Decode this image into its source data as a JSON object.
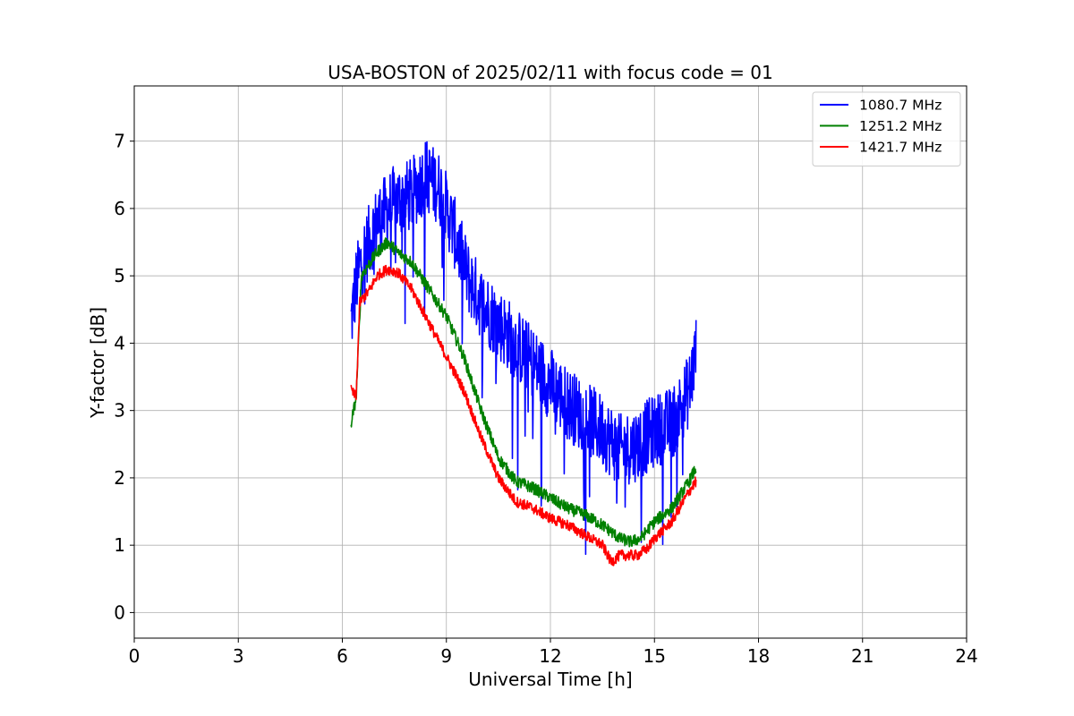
{
  "chart_data": {
    "type": "line",
    "title": "USA-BOSTON of 2025/02/11 with focus code = 01",
    "xlabel": "Universal Time [h]",
    "ylabel": "Y-factor [dB]",
    "xlim": [
      0,
      24
    ],
    "ylim": [
      -0.38,
      7.82
    ],
    "xticks": [
      0,
      3,
      6,
      9,
      12,
      15,
      18,
      21,
      24
    ],
    "yticks": [
      0,
      1,
      2,
      3,
      4,
      5,
      6,
      7
    ],
    "grid": true,
    "legend_position": "top-right",
    "series": [
      {
        "name": "1080.7 MHz",
        "color": "#0000ff",
        "noise": 0.55,
        "x": [
          6.25,
          6.4,
          6.6,
          7.0,
          7.5,
          8.0,
          8.4,
          8.8,
          9.2,
          9.6,
          10.0,
          10.5,
          11.0,
          11.5,
          12.0,
          12.5,
          13.0,
          13.5,
          14.0,
          14.5,
          15.0,
          15.5,
          16.0,
          16.2
        ],
        "y": [
          4.3,
          4.9,
          5.3,
          5.8,
          6.1,
          6.2,
          6.5,
          6.3,
          5.7,
          5.0,
          4.6,
          4.3,
          4.0,
          3.7,
          3.4,
          3.1,
          2.9,
          2.7,
          2.4,
          2.5,
          2.7,
          2.8,
          3.3,
          3.9
        ]
      },
      {
        "name": "1251.2 MHz",
        "color": "#008000",
        "noise": 0.09,
        "x": [
          6.25,
          6.4,
          6.55,
          6.8,
          7.0,
          7.3,
          7.6,
          8.0,
          8.5,
          9.0,
          9.5,
          10.0,
          10.5,
          11.0,
          11.5,
          12.0,
          12.5,
          13.0,
          13.5,
          14.0,
          14.3,
          14.6,
          15.0,
          15.5,
          16.0,
          16.2
        ],
        "y": [
          2.8,
          3.2,
          5.0,
          5.2,
          5.35,
          5.5,
          5.35,
          5.2,
          4.8,
          4.4,
          3.8,
          3.0,
          2.3,
          1.95,
          1.85,
          1.7,
          1.55,
          1.45,
          1.3,
          1.1,
          1.05,
          1.1,
          1.35,
          1.55,
          1.95,
          2.15
        ]
      },
      {
        "name": "1421.7 MHz",
        "color": "#ff0000",
        "noise": 0.08,
        "x": [
          6.25,
          6.4,
          6.5,
          6.8,
          7.0,
          7.3,
          7.6,
          8.0,
          8.5,
          9.0,
          9.5,
          10.0,
          10.5,
          11.0,
          11.5,
          12.0,
          12.5,
          13.0,
          13.5,
          13.75,
          14.0,
          14.5,
          14.8,
          15.0,
          15.5,
          16.0,
          16.2
        ],
        "y": [
          3.3,
          3.2,
          4.6,
          4.8,
          5.0,
          5.1,
          5.05,
          4.8,
          4.3,
          3.8,
          3.3,
          2.6,
          2.0,
          1.65,
          1.55,
          1.4,
          1.3,
          1.15,
          1.0,
          0.75,
          0.85,
          0.85,
          0.95,
          1.1,
          1.35,
          1.8,
          1.95
        ]
      }
    ]
  }
}
